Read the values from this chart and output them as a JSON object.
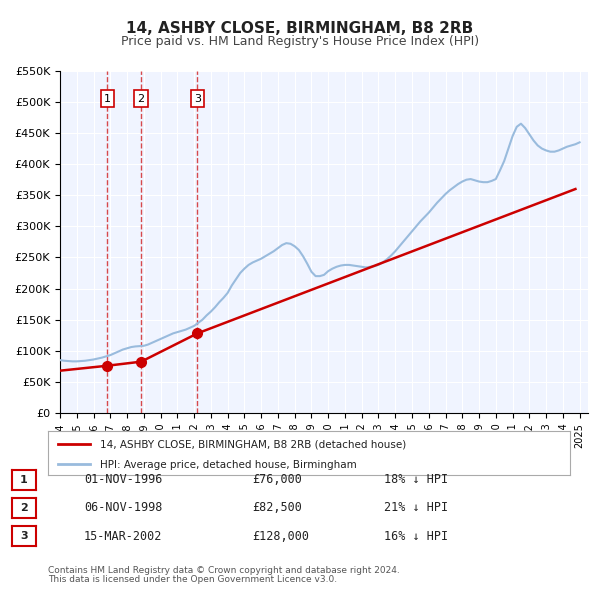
{
  "title": "14, ASHBY CLOSE, BIRMINGHAM, B8 2RB",
  "subtitle": "Price paid vs. HM Land Registry's House Price Index (HPI)",
  "background_color": "#ffffff",
  "plot_bg_color": "#f0f4ff",
  "grid_color": "#ffffff",
  "ylim": [
    0,
    550000
  ],
  "yticks": [
    0,
    50000,
    100000,
    150000,
    200000,
    250000,
    300000,
    350000,
    400000,
    450000,
    500000,
    550000
  ],
  "ytick_labels": [
    "£0",
    "£50K",
    "£100K",
    "£150K",
    "£200K",
    "£250K",
    "£300K",
    "£350K",
    "£400K",
    "£450K",
    "£500K",
    "£550K"
  ],
  "xlim_start": 1994.0,
  "xlim_end": 2025.5,
  "xticks": [
    1994,
    1995,
    1996,
    1997,
    1998,
    1999,
    2000,
    2001,
    2002,
    2003,
    2004,
    2005,
    2006,
    2007,
    2008,
    2009,
    2010,
    2011,
    2012,
    2013,
    2014,
    2015,
    2016,
    2017,
    2018,
    2019,
    2020,
    2021,
    2022,
    2023,
    2024,
    2025
  ],
  "sale_color": "#cc0000",
  "hpi_color": "#99bbdd",
  "sale_linewidth": 1.8,
  "hpi_linewidth": 1.5,
  "sale_label": "14, ASHBY CLOSE, BIRMINGHAM, B8 2RB (detached house)",
  "hpi_label": "HPI: Average price, detached house, Birmingham",
  "transactions": [
    {
      "id": 1,
      "date": "01-NOV-1996",
      "price": 76000,
      "pct": "18%",
      "year": 1996.83
    },
    {
      "id": 2,
      "date": "06-NOV-1998",
      "price": 82500,
      "pct": "21%",
      "year": 1998.84
    },
    {
      "id": 3,
      "date": "15-MAR-2002",
      "price": 128000,
      "pct": "16%",
      "year": 2002.2
    }
  ],
  "footer1": "Contains HM Land Registry data © Crown copyright and database right 2024.",
  "footer2": "This data is licensed under the Open Government Licence v3.0.",
  "hpi_x": [
    1994.0,
    1994.25,
    1994.5,
    1994.75,
    1995.0,
    1995.25,
    1995.5,
    1995.75,
    1996.0,
    1996.25,
    1996.5,
    1996.75,
    1997.0,
    1997.25,
    1997.5,
    1997.75,
    1998.0,
    1998.25,
    1998.5,
    1998.75,
    1999.0,
    1999.25,
    1999.5,
    1999.75,
    2000.0,
    2000.25,
    2000.5,
    2000.75,
    2001.0,
    2001.25,
    2001.5,
    2001.75,
    2002.0,
    2002.25,
    2002.5,
    2002.75,
    2003.0,
    2003.25,
    2003.5,
    2003.75,
    2004.0,
    2004.25,
    2004.5,
    2004.75,
    2005.0,
    2005.25,
    2005.5,
    2005.75,
    2006.0,
    2006.25,
    2006.5,
    2006.75,
    2007.0,
    2007.25,
    2007.5,
    2007.75,
    2008.0,
    2008.25,
    2008.5,
    2008.75,
    2009.0,
    2009.25,
    2009.5,
    2009.75,
    2010.0,
    2010.25,
    2010.5,
    2010.75,
    2011.0,
    2011.25,
    2011.5,
    2011.75,
    2012.0,
    2012.25,
    2012.5,
    2012.75,
    2013.0,
    2013.25,
    2013.5,
    2013.75,
    2014.0,
    2014.25,
    2014.5,
    2014.75,
    2015.0,
    2015.25,
    2015.5,
    2015.75,
    2016.0,
    2016.25,
    2016.5,
    2016.75,
    2017.0,
    2017.25,
    2017.5,
    2017.75,
    2018.0,
    2018.25,
    2018.5,
    2018.75,
    2019.0,
    2019.25,
    2019.5,
    2019.75,
    2020.0,
    2020.25,
    2020.5,
    2020.75,
    2021.0,
    2021.25,
    2021.5,
    2021.75,
    2022.0,
    2022.25,
    2022.5,
    2022.75,
    2023.0,
    2023.25,
    2023.5,
    2023.75,
    2024.0,
    2024.25,
    2024.5,
    2024.75,
    2025.0
  ],
  "hpi_y": [
    85000,
    84000,
    83500,
    83000,
    83000,
    83500,
    84000,
    85000,
    86000,
    87500,
    89000,
    91000,
    93000,
    96000,
    99000,
    102000,
    104000,
    106000,
    107000,
    107500,
    108000,
    110000,
    113000,
    116000,
    119000,
    122000,
    125000,
    128000,
    130000,
    132000,
    134000,
    137000,
    140000,
    145000,
    150000,
    157000,
    163000,
    170000,
    178000,
    185000,
    193000,
    205000,
    215000,
    225000,
    232000,
    238000,
    242000,
    245000,
    248000,
    252000,
    256000,
    260000,
    265000,
    270000,
    273000,
    272000,
    268000,
    262000,
    252000,
    240000,
    227000,
    220000,
    220000,
    222000,
    228000,
    232000,
    235000,
    237000,
    238000,
    238000,
    237000,
    236000,
    235000,
    234000,
    235000,
    236000,
    238000,
    242000,
    247000,
    253000,
    260000,
    268000,
    276000,
    284000,
    292000,
    300000,
    308000,
    315000,
    322000,
    330000,
    338000,
    345000,
    352000,
    358000,
    363000,
    368000,
    372000,
    375000,
    376000,
    374000,
    372000,
    371000,
    371000,
    373000,
    376000,
    390000,
    405000,
    425000,
    445000,
    460000,
    465000,
    458000,
    448000,
    438000,
    430000,
    425000,
    422000,
    420000,
    420000,
    422000,
    425000,
    428000,
    430000,
    432000,
    435000
  ],
  "sale_x": [
    1994.0,
    1996.83,
    1998.84,
    2002.2,
    2024.75
  ],
  "sale_y": [
    68000,
    76000,
    82500,
    128000,
    360000
  ]
}
